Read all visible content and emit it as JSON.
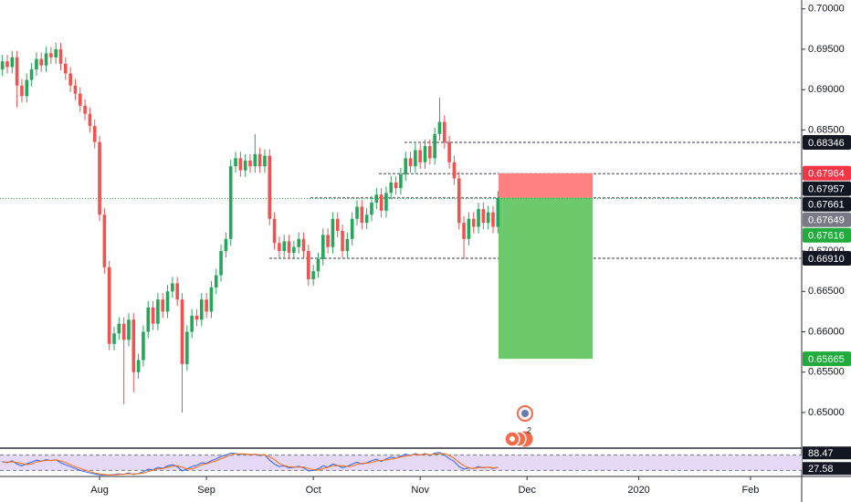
{
  "chart_data": {
    "type": "candlestick",
    "categories": [
      null,
      null,
      null,
      null,
      null,
      null,
      null,
      null,
      null,
      null,
      null,
      null,
      null,
      null,
      null,
      null,
      null,
      null,
      null,
      null,
      "Aug",
      null,
      null,
      null,
      null,
      null,
      null,
      null,
      null,
      null,
      null,
      null,
      null,
      null,
      null,
      null,
      null,
      null,
      null,
      null,
      null,
      null,
      "Sep",
      null,
      null,
      null,
      null,
      null,
      null,
      null,
      null,
      null,
      null,
      null,
      null,
      null,
      null,
      null,
      null,
      null,
      null,
      null,
      null,
      null,
      "Oct",
      null,
      null,
      null,
      null,
      null,
      null,
      null,
      null,
      null,
      null,
      null,
      null,
      null,
      null,
      null,
      null,
      null,
      null,
      null,
      null,
      null,
      "Nov",
      null,
      null,
      null,
      null,
      null,
      null,
      null,
      null,
      null,
      null,
      null,
      null,
      null,
      null,
      null,
      null,
      null,
      null,
      null,
      null,
      null,
      "Dec",
      null,
      null,
      null,
      null,
      null,
      null,
      null,
      null,
      null,
      null,
      null,
      null,
      null,
      null,
      null,
      null,
      null,
      null,
      null,
      null,
      null,
      null,
      "2020",
      null,
      null,
      null,
      null,
      null,
      null,
      null,
      null,
      null,
      null,
      null,
      null,
      null,
      null,
      null,
      null,
      null,
      null,
      null,
      null,
      null,
      null,
      "Feb"
    ],
    "open": [
      0.6925,
      0.6935,
      0.6928,
      0.694,
      0.6905,
      0.6892,
      0.6912,
      0.6925,
      0.6938,
      0.693,
      0.6945,
      0.694,
      0.695,
      0.6932,
      0.692,
      0.6905,
      0.6895,
      0.688,
      0.687,
      0.6855,
      0.6835,
      0.6745,
      0.668,
      0.6585,
      0.6598,
      0.661,
      0.659,
      0.6615,
      0.655,
      0.6565,
      0.66,
      0.663,
      0.661,
      0.664,
      0.6625,
      0.665,
      0.666,
      0.664,
      0.656,
      0.66,
      0.662,
      0.6615,
      0.664,
      0.6625,
      0.6655,
      0.667,
      0.67,
      0.6715,
      0.6805,
      0.6815,
      0.68,
      0.6812,
      0.6805,
      0.682,
      0.6805,
      0.6818,
      0.674,
      0.671,
      0.67,
      0.6712,
      0.6698,
      0.6705,
      0.6715,
      0.67,
      0.6665,
      0.6675,
      0.669,
      0.672,
      0.6705,
      0.674,
      0.6725,
      0.67,
      0.6715,
      0.674,
      0.6755,
      0.6735,
      0.6745,
      0.676,
      0.677,
      0.675,
      0.6772,
      0.6785,
      0.6778,
      0.6795,
      0.6815,
      0.6805,
      0.6825,
      0.681,
      0.683,
      0.6815,
      0.6845,
      0.686,
      0.6835,
      0.681,
      0.679,
      0.6735,
      0.6715,
      0.674,
      0.673,
      0.6752,
      0.6735,
      0.6748,
      0.673,
      null,
      null,
      null,
      null,
      null,
      null,
      null,
      null,
      null,
      null,
      null,
      null,
      null,
      null,
      null,
      null,
      null,
      null,
      null,
      null,
      null,
      null,
      null,
      null,
      null,
      null,
      null,
      null,
      null,
      null,
      null,
      null,
      null,
      null,
      null,
      null,
      null,
      null,
      null,
      null,
      null,
      null,
      null,
      null,
      null,
      null,
      null,
      null,
      null,
      null,
      null,
      null
    ],
    "high": [
      0.6943,
      0.6943,
      0.6948,
      0.6948,
      0.6913,
      0.692,
      0.6933,
      0.6946,
      0.6946,
      0.6953,
      0.6953,
      0.6958,
      0.6958,
      0.694,
      0.6928,
      0.6913,
      0.6903,
      0.6888,
      0.6878,
      0.6863,
      0.6843,
      0.6753,
      0.6688,
      0.6606,
      0.6618,
      0.6618,
      0.6623,
      0.6623,
      0.6573,
      0.6608,
      0.6638,
      0.6638,
      0.6648,
      0.6648,
      0.6658,
      0.6668,
      0.6668,
      0.6648,
      0.6608,
      0.6628,
      0.6628,
      0.6648,
      0.6648,
      0.6663,
      0.6678,
      0.6708,
      0.6723,
      0.6813,
      0.6823,
      0.6823,
      0.682,
      0.682,
      0.6845,
      0.6828,
      0.6826,
      0.6826,
      0.6748,
      0.6718,
      0.672,
      0.672,
      0.6713,
      0.6723,
      0.6723,
      0.6708,
      0.6683,
      0.6698,
      0.6728,
      0.6728,
      0.6748,
      0.6748,
      0.6733,
      0.6723,
      0.6748,
      0.6763,
      0.6763,
      0.6753,
      0.6768,
      0.6778,
      0.6778,
      0.678,
      0.6793,
      0.6793,
      0.6803,
      0.6823,
      0.6823,
      0.6833,
      0.6833,
      0.6838,
      0.6838,
      0.6853,
      0.689,
      0.6868,
      0.6843,
      0.6818,
      0.6798,
      0.6743,
      0.6748,
      0.6748,
      0.676,
      0.676,
      0.6756,
      0.6756,
      0.6774,
      null,
      null,
      null,
      null,
      null,
      null,
      null,
      null,
      null,
      null,
      null,
      null,
      null,
      null,
      null,
      null,
      null,
      null,
      null,
      null,
      null,
      null,
      null,
      null,
      null,
      null,
      null,
      null,
      null,
      null,
      null,
      null,
      null,
      null,
      null,
      null,
      null,
      null,
      null,
      null,
      null,
      null,
      null,
      null,
      null,
      null,
      null,
      null,
      null,
      null,
      null,
      null
    ],
    "low": [
      0.6917,
      0.692,
      0.692,
      0.6878,
      0.6884,
      0.6884,
      0.6904,
      0.6917,
      0.6922,
      0.6922,
      0.6932,
      0.6932,
      0.6924,
      0.6912,
      0.6897,
      0.6887,
      0.6872,
      0.6862,
      0.6847,
      0.6827,
      0.6737,
      0.6672,
      0.6577,
      0.6577,
      0.659,
      0.651,
      0.6582,
      0.6525,
      0.6542,
      0.6557,
      0.6592,
      0.6602,
      0.6602,
      0.6617,
      0.6617,
      0.6642,
      0.6632,
      0.65,
      0.6552,
      0.6592,
      0.6607,
      0.6607,
      0.6617,
      0.6617,
      0.6647,
      0.6662,
      0.6692,
      0.6707,
      0.6797,
      0.6792,
      0.6792,
      0.6797,
      0.6797,
      0.6797,
      0.6797,
      0.6732,
      0.6702,
      0.6692,
      0.6692,
      0.669,
      0.669,
      0.6697,
      0.6692,
      0.6657,
      0.6657,
      0.6667,
      0.6682,
      0.6697,
      0.6697,
      0.6717,
      0.6692,
      0.6692,
      0.6707,
      0.6732,
      0.6727,
      0.6727,
      0.6737,
      0.6752,
      0.6742,
      0.6742,
      0.6764,
      0.677,
      0.677,
      0.6787,
      0.6797,
      0.6797,
      0.6802,
      0.6802,
      0.6807,
      0.6807,
      0.6837,
      0.6827,
      0.6802,
      0.6782,
      0.6727,
      0.669,
      0.6707,
      0.6722,
      0.6722,
      0.6727,
      0.6727,
      0.6722,
      0.6722,
      null,
      null,
      null,
      null,
      null,
      null,
      null,
      null,
      null,
      null,
      null,
      null,
      null,
      null,
      null,
      null,
      null,
      null,
      null,
      null,
      null,
      null,
      null,
      null,
      null,
      null,
      null,
      null,
      null,
      null,
      null,
      null,
      null,
      null,
      null,
      null,
      null,
      null,
      null,
      null,
      null,
      null,
      null,
      null,
      null,
      null,
      null,
      null,
      null,
      null,
      null,
      null
    ],
    "close": [
      0.6935,
      0.6928,
      0.694,
      0.6905,
      0.6892,
      0.6912,
      0.6925,
      0.6938,
      0.693,
      0.6945,
      0.694,
      0.695,
      0.6932,
      0.692,
      0.6905,
      0.6895,
      0.688,
      0.687,
      0.6855,
      0.6835,
      0.6745,
      0.668,
      0.6585,
      0.6598,
      0.661,
      0.659,
      0.6615,
      0.655,
      0.6565,
      0.66,
      0.663,
      0.661,
      0.664,
      0.6625,
      0.665,
      0.666,
      0.664,
      0.656,
      0.66,
      0.662,
      0.6615,
      0.664,
      0.6625,
      0.6655,
      0.667,
      0.67,
      0.6715,
      0.6805,
      0.6815,
      0.68,
      0.6812,
      0.6805,
      0.682,
      0.6805,
      0.6818,
      0.674,
      0.671,
      0.67,
      0.6712,
      0.6698,
      0.6705,
      0.6715,
      0.67,
      0.6665,
      0.6675,
      0.669,
      0.672,
      0.6705,
      0.674,
      0.6725,
      0.67,
      0.6715,
      0.674,
      0.6755,
      0.6735,
      0.6745,
      0.676,
      0.677,
      0.675,
      0.6772,
      0.6785,
      0.6778,
      0.6795,
      0.6815,
      0.6805,
      0.6825,
      0.681,
      0.683,
      0.6815,
      0.6845,
      0.686,
      0.6835,
      0.681,
      0.679,
      0.6735,
      0.6715,
      0.674,
      0.673,
      0.6752,
      0.6735,
      0.6748,
      0.673,
      0.6766,
      null,
      null,
      null,
      null,
      null,
      null,
      null,
      null,
      null,
      null,
      null,
      null,
      null,
      null,
      null,
      null,
      null,
      null,
      null,
      null,
      null,
      null,
      null,
      null,
      null,
      null,
      null,
      null,
      null,
      null,
      null,
      null,
      null,
      null,
      null,
      null,
      null,
      null,
      null,
      null,
      null,
      null,
      null,
      null,
      null,
      null,
      null,
      null,
      null,
      null,
      null,
      null
    ],
    "up_color": "#26a65b",
    "down_color": "#ef5350",
    "ylim": [
      0.6457,
      0.7011
    ],
    "yticks": [
      {
        "value": 0.65,
        "label": "0.65000"
      },
      {
        "value": 0.655,
        "label": "0.65500"
      },
      {
        "value": 0.66,
        "label": "0.66000"
      },
      {
        "value": 0.665,
        "label": "0.66500"
      },
      {
        "value": 0.67,
        "label": "0.67000"
      },
      {
        "value": 0.685,
        "label": "0.68500"
      },
      {
        "value": 0.69,
        "label": "0.69000"
      },
      {
        "value": 0.695,
        "label": "0.69500"
      },
      {
        "value": 0.7,
        "label": "0.70000"
      }
    ],
    "levels": [
      0.68346,
      0.67957,
      0.67661,
      0.6691
    ],
    "position": {
      "entry": 0.67661,
      "stop": 0.67964,
      "target": 0.65665,
      "stop_color": "#ff8080",
      "target_color": "#6cc96c"
    },
    "price_tags": [
      {
        "value": 0.68346,
        "label": "0.68346",
        "color": "#131722"
      },
      {
        "value": 0.67957,
        "label": "0.67957",
        "color": "#131722"
      },
      {
        "value": 0.67964,
        "label": "0.67964",
        "color": "#f23645"
      },
      {
        "value": 0.67661,
        "label": "0.67661",
        "color": "#131722"
      },
      {
        "value": 0.67649,
        "label": "0.67649",
        "color": "#787b86",
        "line": true
      },
      {
        "value": 0.67616,
        "label": "0.67616",
        "color": "#22ab3d"
      },
      {
        "value": 0.6691,
        "label": "0.66910",
        "color": "#131722"
      },
      {
        "value": 0.65665,
        "label": "0.65665",
        "color": "#22ab3d"
      }
    ],
    "event_badge": "2",
    "indicator": {
      "ylim": [
        0,
        100
      ],
      "bands": [
        80,
        20
      ],
      "band_color": "#e6d9f7",
      "series": [
        {
          "color": "#2962ff",
          "values": [
            55,
            50,
            58,
            45,
            38,
            46,
            52,
            60,
            56,
            62,
            58,
            62,
            50,
            42,
            35,
            28,
            20,
            15,
            10,
            6,
            3,
            2,
            2,
            4,
            6,
            5,
            10,
            4,
            8,
            15,
            25,
            22,
            32,
            28,
            38,
            42,
            35,
            18,
            25,
            35,
            40,
            50,
            48,
            58,
            65,
            75,
            80,
            88,
            86,
            82,
            85,
            80,
            84,
            78,
            82,
            60,
            45,
            35,
            38,
            30,
            32,
            36,
            30,
            18,
            20,
            26,
            38,
            33,
            45,
            40,
            30,
            36,
            45,
            52,
            45,
            50,
            58,
            64,
            55,
            65,
            72,
            68,
            76,
            84,
            78,
            86,
            80,
            86,
            78,
            88,
            90,
            80,
            66,
            55,
            35,
            25,
            30,
            28,
            35,
            30,
            33,
            28,
            32,
            null,
            null,
            null,
            null,
            null,
            null,
            null,
            null,
            null,
            null,
            null,
            null,
            null,
            null,
            null,
            null,
            null,
            null,
            null,
            null,
            null,
            null,
            null,
            null,
            null,
            null,
            null,
            null,
            null,
            null,
            null,
            null,
            null,
            null,
            null,
            null,
            null,
            null,
            null,
            null,
            null,
            null,
            null,
            null,
            null,
            null,
            null,
            null,
            null,
            null,
            null
          ]
        },
        {
          "color": "#ff6d00",
          "values": [
            52,
            53,
            54,
            51,
            47,
            43,
            45,
            53,
            56,
            59,
            59,
            61,
            57,
            51,
            42,
            35,
            28,
            21,
            15,
            10,
            6,
            4,
            2,
            3,
            4,
            5,
            7,
            6,
            7,
            9,
            16,
            21,
            26,
            27,
            33,
            36,
            38,
            32,
            26,
            26,
            33,
            42,
            46,
            52,
            57,
            66,
            73,
            81,
            85,
            85,
            84,
            82,
            83,
            81,
            81,
            73,
            62,
            47,
            39,
            34,
            33,
            33,
            33,
            28,
            23,
            21,
            28,
            32,
            39,
            39,
            38,
            35,
            37,
            44,
            47,
            49,
            51,
            57,
            59,
            61,
            64,
            68,
            72,
            76,
            79,
            83,
            81,
            84,
            81,
            84,
            85,
            86,
            79,
            67,
            52,
            38,
            30,
            28,
            31,
            31,
            33,
            30,
            31,
            null,
            null,
            null,
            null,
            null,
            null,
            null,
            null,
            null,
            null,
            null,
            null,
            null,
            null,
            null,
            null,
            null,
            null,
            null,
            null,
            null,
            null,
            null,
            null,
            null,
            null,
            null,
            null,
            null,
            null,
            null,
            null,
            null,
            null,
            null,
            null,
            null,
            null,
            null,
            null,
            null,
            null,
            null,
            null,
            null,
            null,
            null,
            null,
            null,
            null,
            null
          ]
        }
      ],
      "tags": [
        {
          "value": 88.47,
          "label": "88.47"
        },
        {
          "value": 27.58,
          "label": "27.58"
        }
      ]
    }
  }
}
